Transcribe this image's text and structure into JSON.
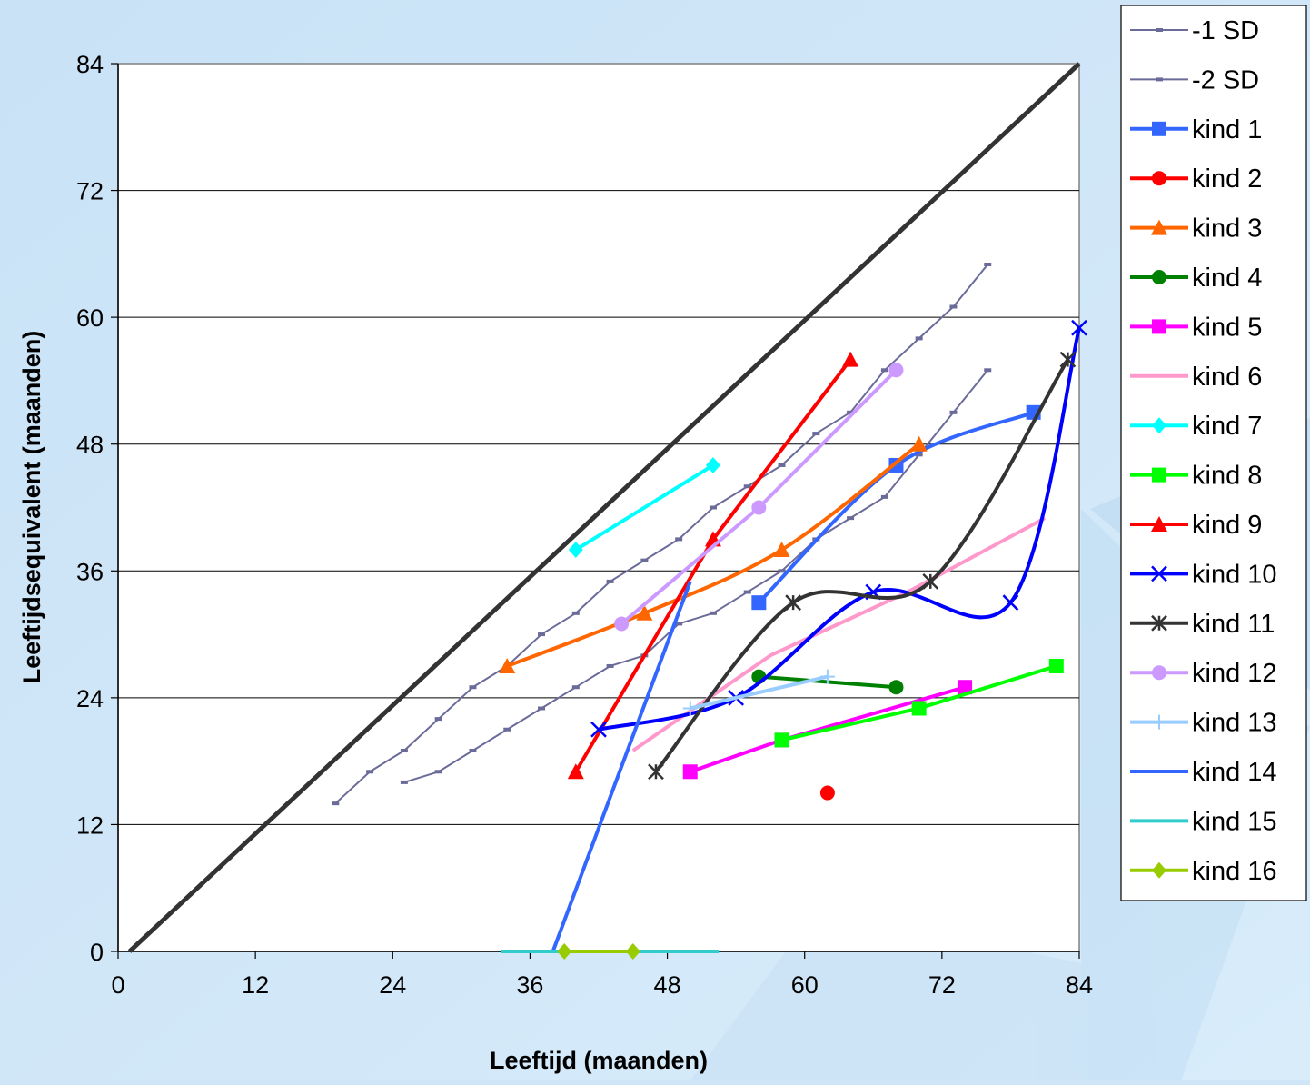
{
  "chart_data": {
    "type": "line",
    "xlabel": "Leeftijd (maanden)",
    "ylabel": "Leeftijdsequivalent (maanden)",
    "xlim": [
      0,
      84
    ],
    "ylim": [
      0,
      84
    ],
    "xticks": [
      "0",
      "12",
      "24",
      "36",
      "48",
      "60",
      "72",
      "84"
    ],
    "yticks": [
      "0",
      "12",
      "24",
      "36",
      "48",
      "60",
      "72",
      "84"
    ],
    "grid": "horizontal",
    "legend_position": "right",
    "reference_line": {
      "x": [
        1,
        84
      ],
      "y": [
        0,
        84
      ],
      "color": "#333333"
    },
    "series": [
      {
        "name": "-1 SD",
        "color": "#6b6b9a",
        "marker": "dash",
        "smooth": false,
        "x": [
          19,
          22,
          25,
          28,
          31,
          34,
          37,
          40,
          43,
          46,
          49,
          52,
          55,
          58,
          61,
          64,
          67,
          70,
          73,
          76
        ],
        "y": [
          14,
          17,
          19,
          22,
          25,
          27,
          30,
          32,
          35,
          37,
          39,
          42,
          44,
          46,
          49,
          51,
          55,
          58,
          61,
          65
        ]
      },
      {
        "name": "-2 SD",
        "color": "#6b6b9a",
        "marker": "dash",
        "smooth": false,
        "x": [
          25,
          28,
          31,
          34,
          37,
          40,
          43,
          46,
          49,
          52,
          55,
          58,
          61,
          64,
          67,
          70,
          73,
          76
        ],
        "y": [
          16,
          17,
          19,
          21,
          23,
          25,
          27,
          28,
          31,
          32,
          34,
          36,
          39,
          41,
          43,
          47,
          51,
          55
        ]
      },
      {
        "name": "kind 1",
        "color": "#3366ff",
        "marker": "square",
        "smooth": true,
        "x": [
          56,
          68,
          80
        ],
        "y": [
          33,
          46,
          51
        ]
      },
      {
        "name": "kind 2",
        "color": "#ff0000",
        "marker": "circle",
        "smooth": false,
        "x": [
          62
        ],
        "y": [
          15
        ]
      },
      {
        "name": "kind 3",
        "color": "#ff6600",
        "marker": "triangle",
        "smooth": true,
        "x": [
          34,
          46,
          58,
          70
        ],
        "y": [
          27,
          32,
          38,
          48
        ]
      },
      {
        "name": "kind 4",
        "color": "#008000",
        "marker": "circle",
        "smooth": false,
        "x": [
          56,
          68
        ],
        "y": [
          26,
          25
        ]
      },
      {
        "name": "kind 5",
        "color": "#ff00ff",
        "marker": "square",
        "smooth": false,
        "x": [
          50,
          58,
          74
        ],
        "y": [
          17,
          20,
          25
        ]
      },
      {
        "name": "kind 6",
        "color": "#ff99cc",
        "marker": "dash",
        "smooth": false,
        "x": [
          45,
          57,
          69,
          81
        ],
        "y": [
          19,
          28,
          34,
          41
        ]
      },
      {
        "name": "kind 7",
        "color": "#00ffff",
        "marker": "diamond",
        "smooth": false,
        "x": [
          40,
          52
        ],
        "y": [
          38,
          46
        ]
      },
      {
        "name": "kind 8",
        "color": "#00ff00",
        "marker": "square",
        "smooth": false,
        "x": [
          58,
          70,
          82
        ],
        "y": [
          20,
          23,
          27
        ]
      },
      {
        "name": "kind 9",
        "color": "#ff0000",
        "marker": "triangle",
        "smooth": false,
        "x": [
          40,
          52,
          64
        ],
        "y": [
          17,
          39,
          56
        ]
      },
      {
        "name": "kind 10",
        "color": "#0000ff",
        "marker": "x",
        "smooth": true,
        "x": [
          42,
          54,
          66,
          78,
          84
        ],
        "y": [
          21,
          24,
          34,
          33,
          59
        ]
      },
      {
        "name": "kind 11",
        "color": "#333333",
        "marker": "star",
        "smooth": true,
        "x": [
          47,
          59,
          71,
          83
        ],
        "y": [
          17,
          33,
          35,
          56
        ]
      },
      {
        "name": "kind 12",
        "color": "#cc99ff",
        "marker": "circle",
        "smooth": false,
        "x": [
          44,
          56,
          68
        ],
        "y": [
          31,
          42,
          55
        ]
      },
      {
        "name": "kind 13",
        "color": "#99ccff",
        "marker": "plus",
        "smooth": false,
        "x": [
          50,
          62
        ],
        "y": [
          23,
          26
        ]
      },
      {
        "name": "kind 14",
        "color": "#3366ff",
        "marker": "dash",
        "smooth": false,
        "x": [
          38,
          50
        ],
        "y": [
          0,
          35
        ]
      },
      {
        "name": "kind 15",
        "color": "#33cccc",
        "marker": "dash",
        "smooth": false,
        "x": [
          33.5,
          52.5
        ],
        "y": [
          0,
          0
        ]
      },
      {
        "name": "kind 16",
        "color": "#99cc00",
        "marker": "diamond",
        "smooth": false,
        "x": [
          39,
          45
        ],
        "y": [
          0,
          0
        ]
      }
    ]
  }
}
